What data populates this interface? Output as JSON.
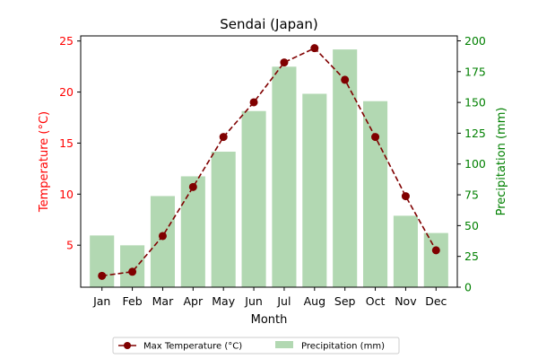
{
  "chart_data": {
    "type": "bar+line",
    "title": "Sendai (Japan)",
    "xlabel": "Month",
    "categories": [
      "Jan",
      "Feb",
      "Mar",
      "Apr",
      "May",
      "Jun",
      "Jul",
      "Aug",
      "Sep",
      "Oct",
      "Nov",
      "Dec"
    ],
    "series": [
      {
        "name": "Max Temperature (°C)",
        "type": "line",
        "axis": "left",
        "color": "#800000",
        "line_style": "dashed",
        "marker": "circle",
        "values": [
          2.0,
          2.4,
          5.9,
          10.7,
          15.6,
          19.0,
          22.9,
          24.3,
          21.2,
          15.6,
          9.8,
          4.5
        ]
      },
      {
        "name": "Precipitation (mm)",
        "type": "bar",
        "axis": "right",
        "color": "#b2d8b2",
        "values": [
          42,
          34,
          74,
          90,
          110,
          143,
          179,
          157,
          193,
          151,
          58,
          44
        ]
      }
    ],
    "y_left": {
      "label": "Temperature (°C)",
      "color": "#ff0000",
      "ylim": [
        0.885,
        25.5
      ],
      "ticks": [
        5,
        10,
        15,
        20,
        25
      ]
    },
    "y_right": {
      "label": "Precipitation (mm)",
      "color": "#008000",
      "ylim": [
        0,
        204
      ],
      "ticks": [
        0,
        25,
        50,
        75,
        100,
        125,
        150,
        175,
        200
      ]
    },
    "grid": false,
    "legend": {
      "placement": "bottom-center",
      "entries": [
        "Max Temperature (°C)",
        "Precipitation (mm)"
      ]
    }
  }
}
